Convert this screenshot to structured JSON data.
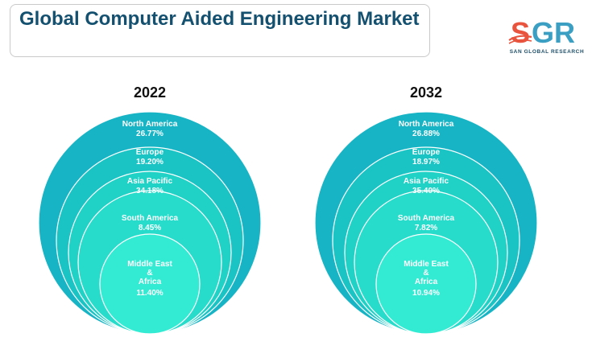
{
  "header": {
    "title": "Global Computer Aided Engineering Market"
  },
  "logo": {
    "mark_text": "SGR",
    "sub_text": "SAN GLOBAL RESEARCH"
  },
  "colors": {
    "title": "#14506f",
    "ring_outer": "#16b4c5",
    "ring_2": "#1ac3c4",
    "ring_3": "#20d1c5",
    "ring_4": "#27dcca",
    "ring_inner": "#33ebd3",
    "logo_s": "#e8543d",
    "logo_gr": "#3a9fc2"
  },
  "chart_data": [
    {
      "type": "nested-circles",
      "title": "2022",
      "categories": [
        "North America",
        "Europe",
        "Asia Pacific",
        "South America",
        "Middle East & Africa"
      ],
      "label_lines": [
        [
          "North America"
        ],
        [
          "Europe"
        ],
        [
          "Asia Pacific"
        ],
        [
          "South America"
        ],
        [
          "Middle East",
          "&",
          "Africa"
        ]
      ],
      "values": [
        26.77,
        19.2,
        34.18,
        8.45,
        11.4
      ],
      "value_labels": [
        "26.77%",
        "19.20%",
        "34.18%",
        "8.45%",
        "11.40%"
      ],
      "unit": "%"
    },
    {
      "type": "nested-circles",
      "title": "2032",
      "categories": [
        "North America",
        "Europe",
        "Asia Pacific",
        "South America",
        "Middle East & Africa"
      ],
      "label_lines": [
        [
          "North America"
        ],
        [
          "Europe"
        ],
        [
          "Asia Pacific"
        ],
        [
          "South America"
        ],
        [
          "Middle East",
          "&",
          "Africa"
        ]
      ],
      "values": [
        26.88,
        18.97,
        35.4,
        7.82,
        10.94
      ],
      "value_labels": [
        "26.88%",
        "18.97%",
        "35.40%",
        "7.82%",
        "10.94%"
      ],
      "unit": "%"
    }
  ]
}
